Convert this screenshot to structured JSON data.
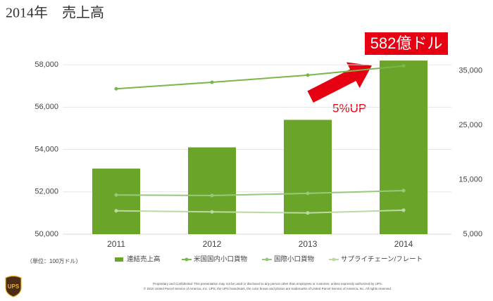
{
  "chart_data": {
    "type": "combo",
    "title": "2014年　売上高",
    "categories": [
      "2011",
      "2012",
      "2013",
      "2014"
    ],
    "series": [
      {
        "name": "連結売上高",
        "type": "bar",
        "color": "#6aa52a",
        "values": [
          53100,
          54100,
          55400,
          58200
        ]
      },
      {
        "name": "米国国内小口貨物",
        "type": "line",
        "axis": "y2",
        "color": "#7ab648",
        "values": [
          31700,
          32900,
          34200,
          35900
        ]
      },
      {
        "name": "国際小口貨物",
        "type": "line",
        "axis": "y2",
        "color": "#96c979",
        "values": [
          12200,
          12100,
          12500,
          13000
        ]
      },
      {
        "name": "サプライチェーン/フレート",
        "type": "line",
        "axis": "y2",
        "color": "#b8dba0",
        "values": [
          9300,
          9100,
          8900,
          9400
        ]
      }
    ],
    "ylim": [
      50000,
      59000
    ],
    "yticks": [
      {
        "value": 50000,
        "label": "50,000"
      },
      {
        "value": 52000,
        "label": "52,000"
      },
      {
        "value": 54000,
        "label": "54,000"
      },
      {
        "value": 56000,
        "label": "56,000"
      },
      {
        "value": 58000,
        "label": "58,000"
      }
    ],
    "y2lim": [
      5000,
      40000
    ],
    "y2ticks": [
      {
        "value": 5000,
        "label": "5,000"
      },
      {
        "value": 15000,
        "label": "15,000"
      },
      {
        "value": 25000,
        "label": "25,000"
      },
      {
        "value": 35000,
        "label": "35,000"
      }
    ],
    "grid": true,
    "legend": "bottom",
    "annotations": {
      "total": "582億ドル",
      "growth": "5%UP"
    },
    "unit_note": "（単位：100万ドル）",
    "logo": "UPS",
    "footer": [
      "Proprietary and Confidential: This presentation may not be used or disclosed to any person other than employees or customer, unless expressly authorized by UPS.",
      "© 2015 United Parcel Service of America, Inc. UPS, the UPS brandmark, the color brown and photos are trademarks of United Parcel Service of America, Inc. All rights reserved."
    ]
  }
}
